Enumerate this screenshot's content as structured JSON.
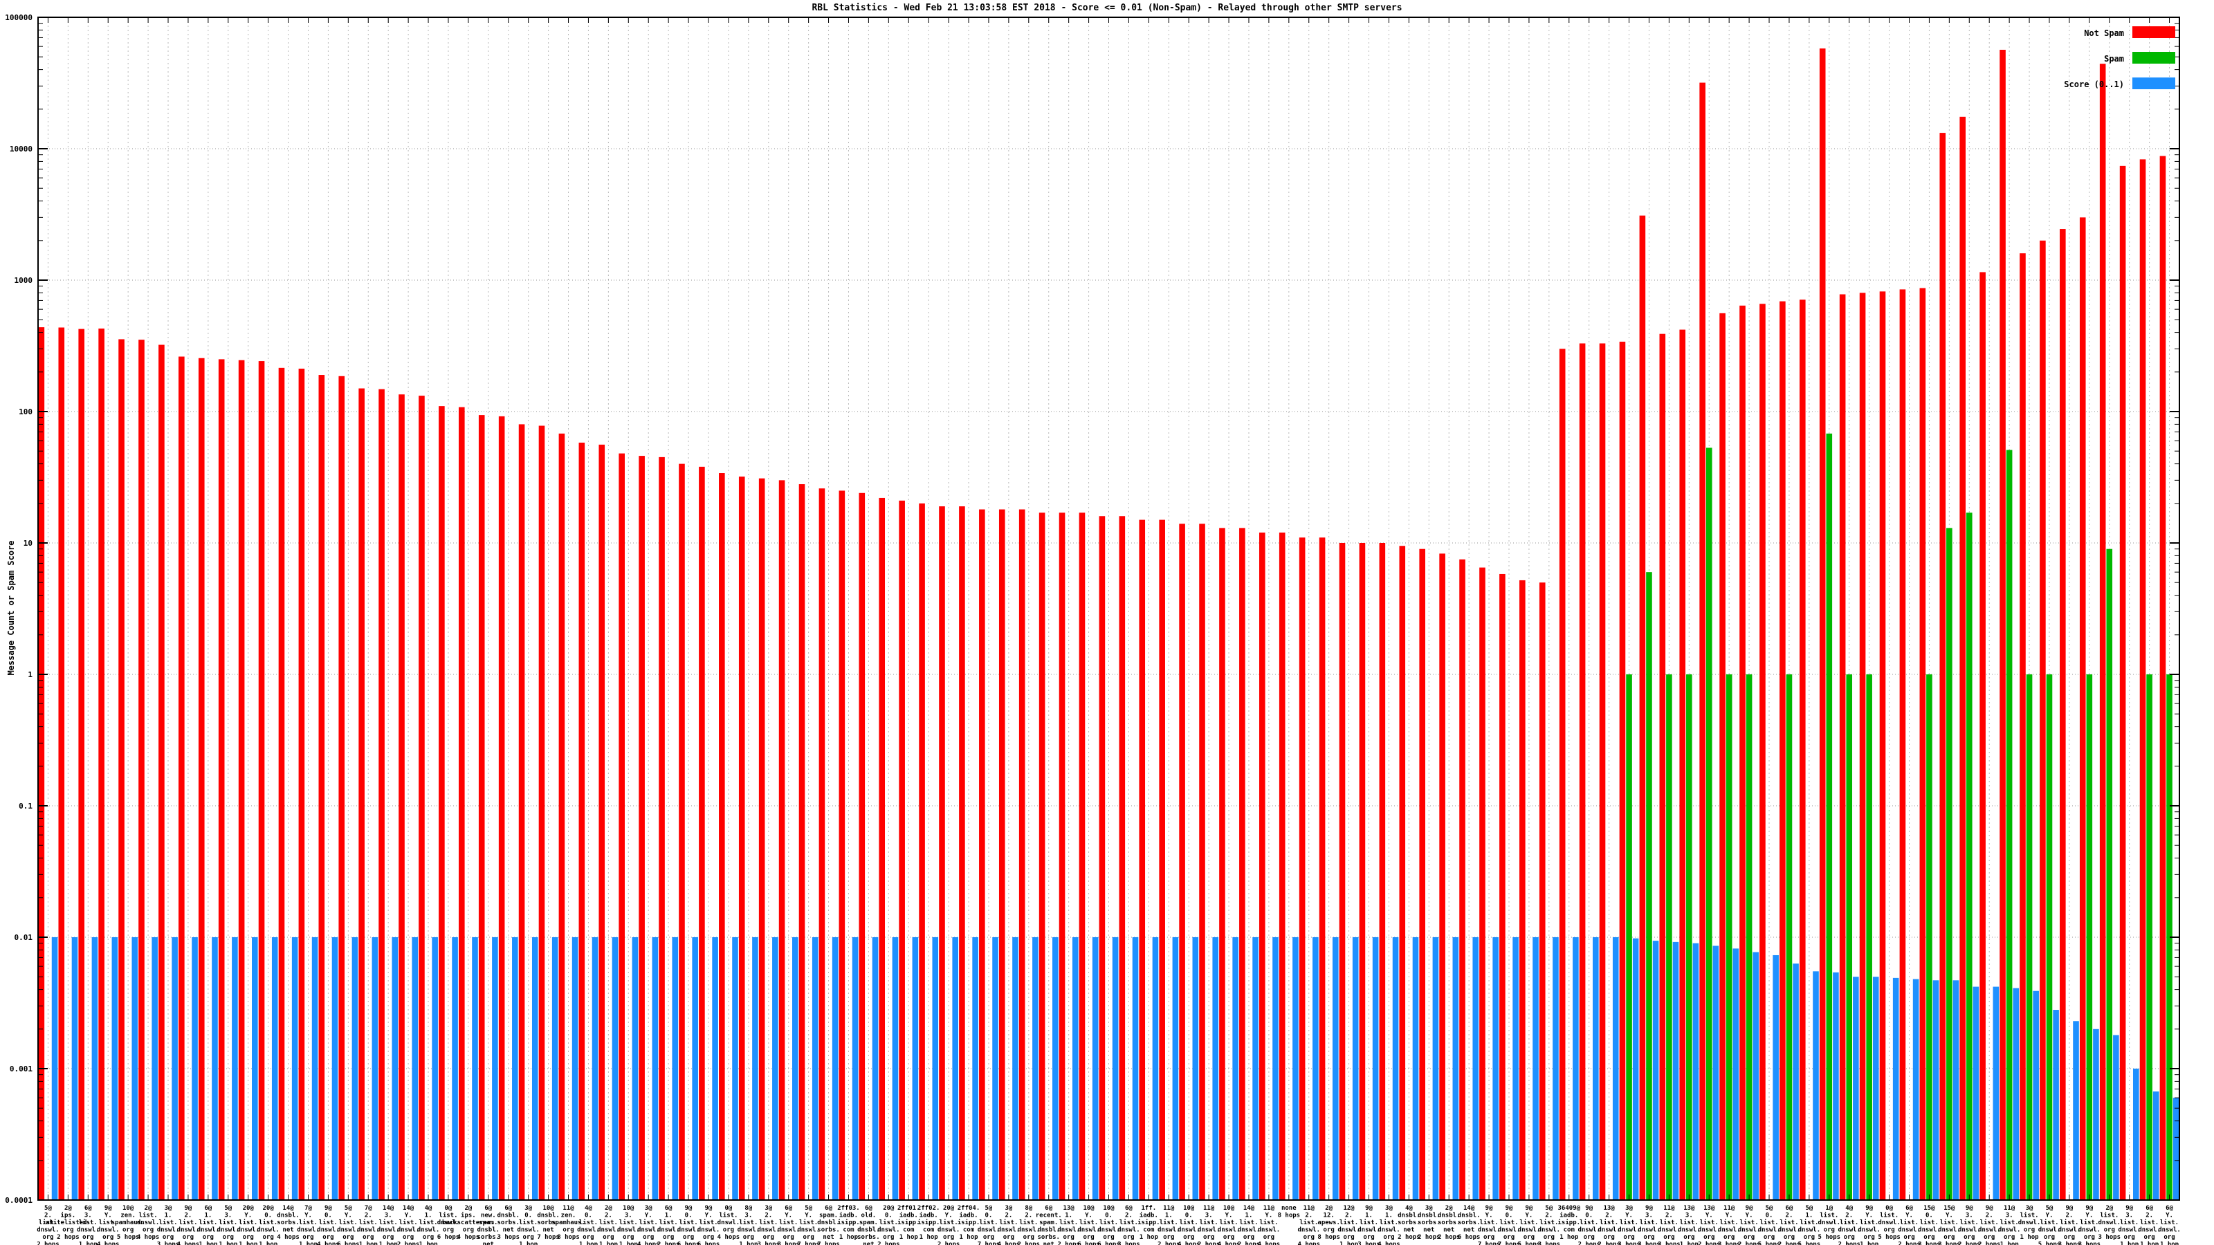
{
  "title": "RBL Statistics - Wed Feb 21 13:03:58 EST 2018 - Score <= 0.01 (Non-Spam) - Relayed through other SMTP servers",
  "y_axis": {
    "label": "Message Count or Spam Score",
    "tick_labels": [
      "100000",
      "10000",
      "1000",
      "100",
      "10",
      "1",
      "0.1",
      "0.01",
      "0.001",
      "0.0001"
    ]
  },
  "legend": {
    "position": "top-right-inside",
    "items": [
      {
        "label": "Not Spam",
        "color": "#ff0000"
      },
      {
        "label": "Spam",
        "color": "#00b800"
      },
      {
        "label": "Score (0..1)",
        "color": "#1e90ff"
      }
    ]
  },
  "chart_data": {
    "type": "bar",
    "scale": "log",
    "grid": true,
    "ylim": [
      0.0001,
      100000
    ],
    "title": "RBL Statistics - Wed Feb 21 13:03:58 EST 2018 - Score <= 0.01 (Non-Spam) - Relayed through other SMTP servers",
    "ylabel": "Message Count or Spam Score",
    "series_names": [
      "Not Spam",
      "Spam",
      "Score (0..1)"
    ],
    "colors": {
      "not_spam": "#ff0000",
      "spam": "#00b800",
      "score": "#1e90ff",
      "grid_v": "#b8b8b8",
      "grid_h": "#909090",
      "border": "#000000"
    },
    "categories": [
      "5@|2.|list.|dnswl.|org|2 hops",
      "2@|ips.|whitelisted.|org|2 hops",
      "6@|3.|list.|dnswl.|org|1 hop",
      "9@|Y.|list.|dnswl.|org|4 hops",
      "10@|zen.|spamhaus.|org|5 hops",
      "2@|list.|dnswl.|org|4 hops",
      "3@|1.|list.|dnswl.|org|3 hops",
      "9@|2.|list.|dnswl.|org|4 hops",
      "6@|1.|list.|dnswl.|org|1 hop",
      "5@|3.|list.|dnswl.|org|1 hop",
      "20@|Y.|list.|dnswl.|org|1 hop",
      "20@|0.|list.|dnswl.|org|1 hop",
      "14@|dnsbl.|sorbs.|net|4 hops",
      "7@|Y.|list.|dnswl.|org|1 hop",
      "9@|0.|list.|dnswl.|org|4 hops",
      "5@|Y.|list.|dnswl.|org|6 hops",
      "7@|2.|list.|dnswl.|org|1 hop",
      "14@|3.|list.|dnswl.|org|1 hop",
      "14@|Y.|list.|dnswl.|org|2 hops",
      "4@|1.|list.|dnswl.|org|1 hop",
      "0@|list.|dnswl.|org|6 hops",
      "2@|ips.|backscatterer.|org|4 hops",
      "6@|new.|spam.|dnsbl.|sorbs.|net|4 hops",
      "6@|dnsbl.|sorbs.|net|3 hops",
      "3@|0.|list.|dnswl.|org|1 hop",
      "10@|dnsbl.|sorbs.|net|7 hops",
      "11@|zen.|spamhaus.|org|8 hops",
      "4@|0.|list.|dnswl.|org|1 hop",
      "2@|2.|list.|dnswl.|org|1 hop",
      "10@|3.|list.|dnswl.|org|1 hop",
      "3@|Y.|list.|dnswl.|org|4 hops",
      "6@|1.|list.|dnswl.|org|2 hops",
      "9@|0.|list.|dnswl.|org|6 hops",
      "9@|Y.|list.|dnswl.|org|6 hops",
      "0@|list.|dnswl.|org|4 hops",
      "8@|3.|list.|dnswl.|org|1 hop",
      "3@|2.|list.|dnswl.|org|3 hops",
      "6@|Y.|list.|dnswl.|org|3 hops",
      "5@|Y.|list.|dnswl.|org|7 hops",
      "6@|spam.|dnsbl.|sorbs.|net|7 hops",
      "2ff03.|iadb.|isipp.|com|1 hop",
      "6@|old.|spam.|dnsbl.|sorbs.|net|7 hops",
      "20@|0.|list.|dnswl.|org|2 hops",
      "2ff01.|iadb.|isipp.|com|1 hop",
      "2ff02.|iadb.|isipp.|com|1 hop",
      "20@|Y.|list.|dnswl.|org|2 hops",
      "2ff04.|iadb.|isipp.|com|1 hop",
      "5@|0.|list.|dnswl.|org|7 hops",
      "3@|2.|list.|dnswl.|org|4 hops",
      "8@|2.|list.|dnswl.|org|2 hops",
      "6@|recent.|spam.|dnsbl.|sorbs.|net|2 hops",
      "13@|1.|list.|dnswl.|org|2 hops",
      "10@|Y.|list.|dnswl.|org|6 hops",
      "10@|0.|list.|dnswl.|org|6 hops",
      "6@|2.|list.|dnswl.|org|3 hops",
      "1ff.|iadb.|isipp.|com|1 hop",
      "11@|1.|list.|dnswl.|org|2 hops",
      "10@|0.|list.|dnswl.|org|4 hops",
      "11@|3.|list.|dnswl.|org|2 hops",
      "10@|Y.|list.|dnswl.|org|4 hops",
      "14@|1.|list.|dnswl.|org|2 hops",
      "11@|Y.|list.|dnswl.|org|4 hops",
      "none|8 hops",
      "11@|2.|list.|dnswl.|org|4 hops",
      "2@|12.|apews.|org|8 hops",
      "12@|2.|list.|dnswl.|org|1 hop",
      "9@|1.|list.|dnswl.|org|3 hops",
      "3@|1.|list.|dnswl.|org|4 hops",
      "4@|dnsbl.|sorbs.|net|2 hops",
      "3@|dnsbl.|sorbs.|net|2 hops",
      "2@|dnsbl.|sorbs.|net|2 hops",
      "14@|dnsbl.|sorbs.|net|6 hops",
      "9@|Y.|list.|dnswl.|org|7 hops",
      "9@|0.|list.|dnswl.|org|7 hops",
      "9@|Y.|list.|dnswl.|org|5 hops",
      "5@|2.|list.|dnswl.|org|3 hops",
      "36409@|iadb.|isipp.|com|1 hop",
      "9@|0.|list.|dnswl.|org|2 hops",
      "13@|2.|list.|dnswl.|org|2 hops",
      "3@|Y.|list.|dnswl.|org|3 hops",
      "9@|3.|list.|dnswl.|org|3 hops",
      "11@|2.|list.|dnswl.|org|3 hops",
      "13@|3.|list.|dnswl.|org|1 hop",
      "13@|Y.|list.|dnswl.|org|2 hops",
      "11@|Y.|list.|dnswl.|org|3 hops",
      "9@|Y.|list.|dnswl.|org|2 hops",
      "5@|0.|list.|dnswl.|org|5 hops",
      "6@|2.|list.|dnswl.|org|2 hops",
      "5@|1.|list.|dnswl.|org|5 hops",
      "1@|list.|dnswl.|org|5 hops",
      "4@|2.|list.|dnswl.|org|2 hops",
      "9@|Y.|list.|dnswl.|org|1 hop",
      "0@|list.|dnswl.|org|5 hops",
      "6@|Y.|list.|dnswl.|org|2 hops",
      "15@|0.|list.|dnswl.|org|3 hops",
      "15@|Y.|list.|dnswl.|org|3 hops",
      "9@|3.|list.|dnswl.|org|2 hops",
      "9@|2.|list.|dnswl.|org|2 hops",
      "11@|3.|list.|dnswl.|org|1 hop",
      "3@|list.|dnswl.|org|1 hop",
      "5@|Y.|list.|dnswl.|org|5 hops",
      "9@|2.|list.|dnswl.|org|3 hops",
      "9@|Y.|list.|dnswl.|org|3 hops",
      "2@|list.|dnswl.|org|3 hops",
      "9@|3.|list.|dnswl.|org|1 hop",
      "6@|2.|list.|dnswl.|org|1 hop",
      "6@|Y.|list.|dnswl.|org|1 hop"
    ],
    "series": [
      {
        "name": "Not Spam",
        "values": [
          438,
          436,
          425,
          428,
          355,
          352,
          322,
          262,
          255,
          250,
          246,
          242,
          215,
          212,
          190,
          186,
          150,
          148,
          135,
          132,
          110,
          108,
          94,
          92,
          80,
          78,
          68,
          58,
          56,
          48,
          46,
          45,
          40,
          38,
          34,
          32,
          31,
          30,
          28,
          26,
          25,
          24,
          22,
          21,
          20,
          19,
          19,
          18,
          18,
          18,
          17,
          17,
          17,
          16,
          16,
          15,
          15,
          14,
          14,
          13,
          13,
          12,
          12,
          11,
          11,
          10,
          10,
          10,
          9.5,
          9,
          8.3,
          7.5,
          6.5,
          5.8,
          5.2,
          5,
          300,
          330,
          330,
          340,
          3100,
          390,
          420,
          31800,
          560,
          640,
          660,
          690,
          710,
          57900,
          780,
          800,
          820,
          850,
          870,
          13200,
          17500,
          1150,
          56600,
          1600,
          2000,
          2450,
          3000,
          44300,
          7400,
          8300,
          8800
        ]
      },
      {
        "name": "Spam",
        "values": [
          null,
          null,
          null,
          null,
          null,
          null,
          null,
          null,
          null,
          null,
          null,
          null,
          null,
          null,
          null,
          null,
          null,
          null,
          null,
          null,
          null,
          null,
          null,
          null,
          null,
          null,
          null,
          null,
          null,
          null,
          null,
          null,
          null,
          null,
          null,
          null,
          null,
          null,
          null,
          null,
          null,
          null,
          null,
          null,
          null,
          null,
          null,
          null,
          null,
          null,
          null,
          null,
          null,
          null,
          null,
          null,
          null,
          null,
          null,
          null,
          null,
          null,
          null,
          null,
          null,
          null,
          null,
          null,
          null,
          null,
          null,
          null,
          null,
          null,
          null,
          null,
          null,
          null,
          null,
          1,
          6,
          1,
          1,
          53,
          1,
          1,
          null,
          1,
          null,
          68,
          1,
          1,
          null,
          null,
          1,
          13,
          17,
          null,
          51,
          1,
          1,
          null,
          1,
          9,
          null,
          1,
          1
        ]
      },
      {
        "name": "Score (0..1)",
        "values": [
          0.01,
          0.01,
          0.01,
          0.01,
          0.01,
          0.01,
          0.01,
          0.01,
          0.01,
          0.01,
          0.01,
          0.01,
          0.01,
          0.01,
          0.01,
          0.01,
          0.01,
          0.01,
          0.01,
          0.01,
          0.01,
          0.01,
          0.01,
          0.01,
          0.01,
          0.01,
          0.01,
          0.01,
          0.01,
          0.01,
          0.01,
          0.01,
          0.01,
          0.01,
          0.01,
          0.01,
          0.01,
          0.01,
          0.01,
          0.01,
          0.01,
          0.01,
          0.01,
          0.01,
          0.01,
          0.01,
          0.01,
          0.01,
          0.01,
          0.01,
          0.01,
          0.01,
          0.01,
          0.01,
          0.01,
          0.01,
          0.01,
          0.01,
          0.01,
          0.01,
          0.01,
          0.01,
          0.01,
          0.01,
          0.01,
          0.01,
          0.01,
          0.01,
          0.01,
          0.01,
          0.01,
          0.01,
          0.01,
          0.01,
          0.01,
          0.01,
          0.01,
          0.01,
          0.01,
          0.0098,
          0.0094,
          0.0092,
          0.009,
          0.0086,
          0.0082,
          0.0077,
          0.0073,
          0.0063,
          0.0055,
          0.0054,
          0.005,
          0.005,
          0.0049,
          0.0048,
          0.0047,
          0.0047,
          0.0042,
          0.0042,
          0.0041,
          0.0039,
          0.0028,
          0.0023,
          0.002,
          0.0018,
          0.001,
          0.00067,
          0.0006
        ]
      }
    ]
  }
}
